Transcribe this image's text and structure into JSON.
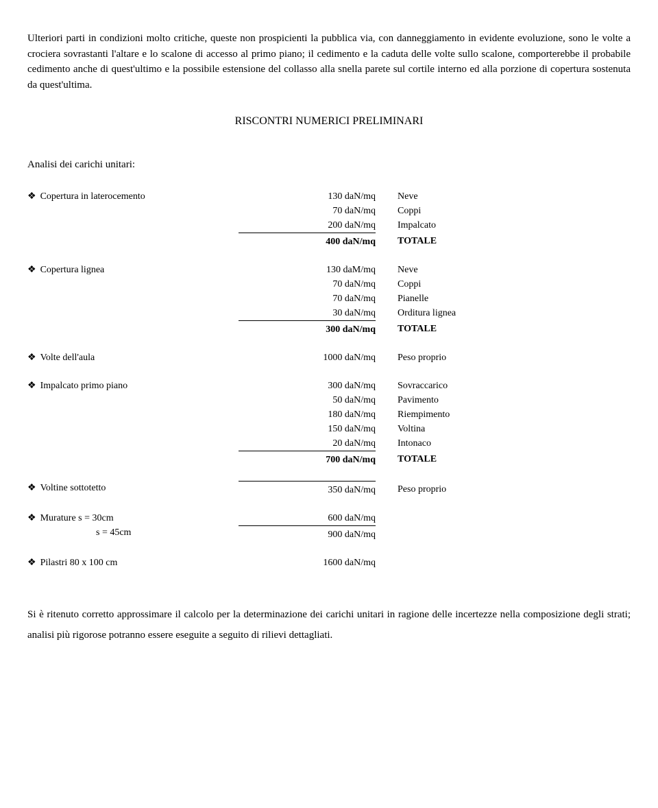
{
  "intro": "Ulteriori parti in condizioni molto critiche, queste non prospicienti la pubblica via, con danneggiamento in evidente evoluzione, sono le volte a crociera sovrastanti l'altare e lo scalone di accesso al primo piano; il cedimento e la caduta delle volte sullo scalone, comporterebbe il probabile cedimento anche di quest'ultimo e la possibile estensione del collasso alla snella parete sul cortile interno ed alla porzione di copertura sostenuta da quest'ultima.",
  "sectionHeading": "RISCONTRI NUMERICI PRELIMINARI",
  "subheading": "Analisi dei carichi unitari:",
  "bullet": "❖",
  "items": [
    {
      "label": "Copertura in laterocemento",
      "rows": [
        {
          "value": "130 daN/mq",
          "desc": "Neve",
          "bold": false,
          "hr": false
        },
        {
          "value": "70 daN/mq",
          "desc": "Coppi",
          "bold": false,
          "hr": false
        },
        {
          "value": "200 daN/mq",
          "desc": "Impalcato",
          "bold": false,
          "hr": false
        },
        {
          "value": "400 daN/mq",
          "desc": "TOTALE",
          "bold": true,
          "hr": true
        }
      ]
    },
    {
      "label": "Copertura lignea",
      "rows": [
        {
          "value": "130 daM/mq",
          "desc": "Neve",
          "bold": false,
          "hr": false
        },
        {
          "value": "70 daN/mq",
          "desc": "Coppi",
          "bold": false,
          "hr": false
        },
        {
          "value": "70 daN/mq",
          "desc": "Pianelle",
          "bold": false,
          "hr": false
        },
        {
          "value": "30 daN/mq",
          "desc": "Orditura lignea",
          "bold": false,
          "hr": false
        },
        {
          "value": "300 daN/mq",
          "desc": "TOTALE",
          "bold": true,
          "hr": true
        }
      ]
    },
    {
      "label": "Volte dell'aula",
      "rows": [
        {
          "value": "1000 daN/mq",
          "desc": "Peso proprio",
          "bold": false,
          "hr": false
        }
      ]
    },
    {
      "label": "Impalcato primo piano",
      "rows": [
        {
          "value": "300 daN/mq",
          "desc": "Sovraccarico",
          "bold": false,
          "hr": false
        },
        {
          "value": "50 daN/mq",
          "desc": "Pavimento",
          "bold": false,
          "hr": false
        },
        {
          "value": "180 daN/mq",
          "desc": "Riempimento",
          "bold": false,
          "hr": false
        },
        {
          "value": "150 daN/mq",
          "desc": "Voltina",
          "bold": false,
          "hr": false
        },
        {
          "value": "20 daN/mq",
          "desc": "Intonaco",
          "bold": false,
          "hr": false
        },
        {
          "value": "700 daN/mq",
          "desc": "TOTALE",
          "bold": true,
          "hr": true
        }
      ]
    },
    {
      "label": "Voltine sottotetto",
      "rows": [
        {
          "value": "350 daN/mq",
          "desc": "Peso proprio",
          "bold": false,
          "hr": true
        }
      ]
    },
    {
      "label": "Murature s = 30cm",
      "sublabel": "s = 45cm",
      "rows": [
        {
          "value": "600 daN/mq",
          "desc": "",
          "bold": false,
          "hr": false
        },
        {
          "value": "900 daN/mq",
          "desc": "",
          "bold": false,
          "hr": true
        }
      ]
    },
    {
      "label": "Pilastri 80 x 100 cm",
      "rows": [
        {
          "value": "1600 daN/mq",
          "desc": "",
          "bold": false,
          "hr": false
        }
      ]
    }
  ],
  "closing": "Si è ritenuto corretto approssimare il calcolo per la determinazione dei carichi unitari in ragione delle incertezze nella composizione degli strati; analisi più rigorose potranno essere eseguite a seguito di rilievi dettagliati."
}
